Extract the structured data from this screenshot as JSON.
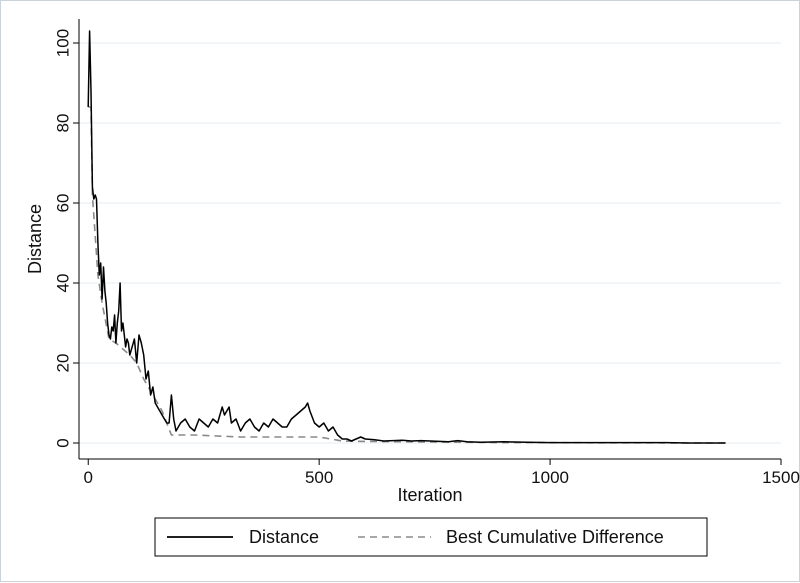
{
  "chart_data": {
    "type": "line",
    "title": "",
    "xlabel": "Iteration",
    "ylabel": "Distance",
    "xlim": [
      -20,
      1500
    ],
    "ylim": [
      -4,
      106
    ],
    "x_ticks": [
      0,
      500,
      1000,
      1500
    ],
    "y_ticks": [
      0,
      20,
      40,
      60,
      80,
      100
    ],
    "grid": "horizontal",
    "legend": "bottom",
    "series": [
      {
        "name": "Distance",
        "color": "#000000",
        "style": "solid",
        "x": [
          0,
          3,
          6,
          9,
          12,
          15,
          18,
          21,
          24,
          27,
          30,
          33,
          36,
          39,
          42,
          45,
          48,
          51,
          54,
          57,
          60,
          63,
          66,
          69,
          72,
          75,
          78,
          81,
          84,
          87,
          90,
          95,
          100,
          105,
          110,
          115,
          120,
          125,
          130,
          135,
          140,
          145,
          150,
          155,
          160,
          165,
          170,
          175,
          180,
          185,
          190,
          200,
          210,
          220,
          230,
          240,
          250,
          260,
          270,
          280,
          290,
          295,
          300,
          305,
          310,
          320,
          330,
          340,
          350,
          360,
          370,
          380,
          390,
          400,
          410,
          420,
          430,
          440,
          450,
          460,
          470,
          475,
          480,
          490,
          500,
          510,
          520,
          530,
          540,
          550,
          560,
          570,
          580,
          590,
          600,
          620,
          640,
          660,
          680,
          700,
          720,
          740,
          760,
          780,
          800,
          820,
          850,
          900,
          950,
          1000,
          1050,
          1100,
          1150,
          1200,
          1250,
          1300,
          1350,
          1380
        ],
        "y": [
          84,
          103,
          88,
          64,
          61,
          62,
          61,
          50,
          42,
          45,
          36,
          44,
          38,
          35,
          30,
          27,
          26,
          29,
          28,
          32,
          25,
          30,
          33,
          40,
          28,
          30,
          27,
          24,
          26,
          25,
          22,
          24,
          26,
          20,
          27,
          25,
          22,
          16,
          18,
          12,
          14,
          10,
          9,
          8,
          7,
          6,
          5,
          5,
          12,
          6,
          3,
          5,
          6,
          4,
          3,
          6,
          5,
          4,
          6,
          5,
          9,
          7,
          8,
          9,
          5,
          6,
          3,
          5,
          6,
          4,
          3,
          5,
          4,
          6,
          5,
          4,
          4,
          6,
          7,
          8,
          9,
          10,
          8,
          5,
          4,
          5,
          3,
          4,
          2,
          1,
          1,
          0.5,
          1,
          1.5,
          1,
          0.8,
          0.5,
          0.6,
          0.7,
          0.5,
          0.6,
          0.5,
          0.4,
          0.3,
          0.6,
          0.3,
          0.2,
          0.3,
          0.2,
          0.1,
          0.1,
          0.1,
          0.1,
          0.1,
          0.1,
          0,
          0,
          0
        ]
      },
      {
        "name": "Best Cumulative Difference",
        "color": "#8a8a8a",
        "style": "dashed",
        "x": [
          0,
          6,
          9,
          21,
          30,
          45,
          60,
          90,
          105,
          120,
          140,
          160,
          180,
          230,
          330,
          400,
          450,
          500,
          550,
          600,
          700,
          800,
          900,
          1000,
          1100,
          1200,
          1300,
          1380
        ],
        "y": [
          84,
          84,
          62,
          42,
          35,
          26,
          25,
          22,
          20,
          16,
          12,
          8,
          2,
          2,
          1.5,
          1.5,
          1.5,
          1.5,
          0.5,
          0.4,
          0.3,
          0.2,
          0.1,
          0.1,
          0.05,
          0.05,
          0,
          0
        ]
      }
    ]
  }
}
